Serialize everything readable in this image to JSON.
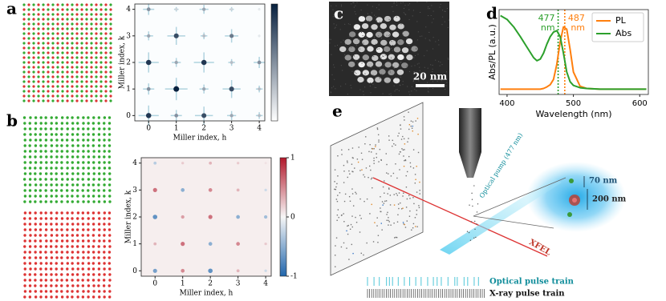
{
  "chart_data": [
    {
      "type": "heatmap",
      "panel": "a",
      "xlabel": "Miller index, h",
      "ylabel": "Miller index, k",
      "xlim": [
        -0.5,
        4.2
      ],
      "ylim": [
        -0.2,
        4.2
      ],
      "xticks": [
        0,
        1,
        2,
        3,
        4
      ],
      "yticks": [
        0,
        1,
        2,
        3,
        4
      ],
      "colors": [
        "#ffffff",
        "#08213f"
      ],
      "clim": [
        0,
        1
      ],
      "x": [
        0,
        1,
        2,
        3,
        4,
        0,
        1,
        2,
        3,
        4,
        0,
        1,
        2,
        3,
        4,
        0,
        1,
        2,
        3,
        4,
        0,
        1,
        2,
        3,
        4
      ],
      "y": [
        0,
        0,
        0,
        0,
        0,
        1,
        1,
        1,
        1,
        1,
        2,
        2,
        2,
        2,
        2,
        3,
        3,
        3,
        3,
        3,
        4,
        4,
        4,
        4,
        4
      ],
      "values": [
        0.9,
        0.5,
        0.8,
        0.4,
        0.3,
        0.5,
        1.0,
        0.4,
        0.8,
        0.3,
        0.9,
        0.4,
        0.9,
        0.3,
        0.5,
        0.4,
        0.8,
        0.3,
        0.6,
        0.1,
        0.5,
        0.2,
        0.4,
        0.2,
        0.1
      ]
    },
    {
      "type": "heatmap",
      "panel": "b",
      "xlabel": "Miller index, h",
      "ylabel": "Miller index, k",
      "xlim": [
        -0.5,
        4.2
      ],
      "ylim": [
        -0.2,
        4.2
      ],
      "xticks": [
        0,
        1,
        2,
        3,
        4
      ],
      "yticks": [
        0,
        1,
        2,
        3,
        4
      ],
      "colors": [
        "#2166ac",
        "#f7f7f7",
        "#b2182b"
      ],
      "clim": [
        -1,
        1
      ],
      "cticks": [
        -1,
        0,
        1
      ],
      "x": [
        0,
        1,
        2,
        3,
        4,
        0,
        1,
        2,
        3,
        4,
        0,
        1,
        2,
        3,
        4,
        0,
        1,
        2,
        3,
        4,
        0,
        1,
        2,
        3,
        4
      ],
      "y": [
        0,
        0,
        0,
        0,
        0,
        1,
        1,
        1,
        1,
        1,
        2,
        2,
        2,
        2,
        2,
        3,
        3,
        3,
        3,
        3,
        4,
        4,
        4,
        4,
        4
      ],
      "values": [
        -0.6,
        0.5,
        -0.7,
        0.3,
        -0.2,
        0.3,
        0.6,
        -0.5,
        0.5,
        0.2,
        -0.7,
        0.4,
        0.6,
        -0.5,
        -0.4,
        0.6,
        -0.5,
        0.5,
        0.3,
        -0.2,
        -0.3,
        0.2,
        0.3,
        0.2,
        0.1
      ]
    },
    {
      "type": "line",
      "panel": "d",
      "xlabel": "Wavelength (nm)",
      "ylabel": "Abs/PL (a.u.)",
      "xlim": [
        388,
        613
      ],
      "ylim": [
        -0.05,
        1.08
      ],
      "xticks": [
        400,
        500,
        600
      ],
      "legend": "upper right",
      "x": [
        390,
        400,
        410,
        420,
        430,
        440,
        445,
        450,
        455,
        460,
        465,
        470,
        475,
        480,
        485,
        490,
        495,
        500,
        510,
        520,
        540,
        560,
        580,
        600,
        610
      ],
      "series": [
        {
          "name": "PL",
          "color": "#ff7f0e",
          "values": [
            0.02,
            0.02,
            0.02,
            0.02,
            0.02,
            0.02,
            0.02,
            0.02,
            0.03,
            0.05,
            0.08,
            0.15,
            0.35,
            0.65,
            0.85,
            0.82,
            0.55,
            0.25,
            0.06,
            0.03,
            0.02,
            0.02,
            0.02,
            0.02,
            0.02
          ]
        },
        {
          "name": "Abs",
          "color": "#2ca02c",
          "values": [
            1.0,
            0.95,
            0.85,
            0.72,
            0.58,
            0.44,
            0.4,
            0.42,
            0.5,
            0.62,
            0.72,
            0.78,
            0.8,
            0.72,
            0.5,
            0.25,
            0.12,
            0.07,
            0.04,
            0.03,
            0.02,
            0.02,
            0.02,
            0.02,
            0.02
          ]
        }
      ],
      "annotations": [
        {
          "text": "477 nm",
          "x": 477,
          "color": "#2ca02c"
        },
        {
          "text": "487 nm",
          "x": 487,
          "color": "#ff7f0e"
        }
      ]
    }
  ],
  "figure": {
    "c": {
      "label": "c",
      "scale_bar": "20 nm"
    },
    "e": {
      "label": "e",
      "pump": "Optical pump (477 nm)",
      "xfel": "XFEL",
      "size_small": "70 nm",
      "size_large": "200 nm",
      "optical_train": "Optical pulse train",
      "xray_train": "X-ray pulse train"
    }
  }
}
